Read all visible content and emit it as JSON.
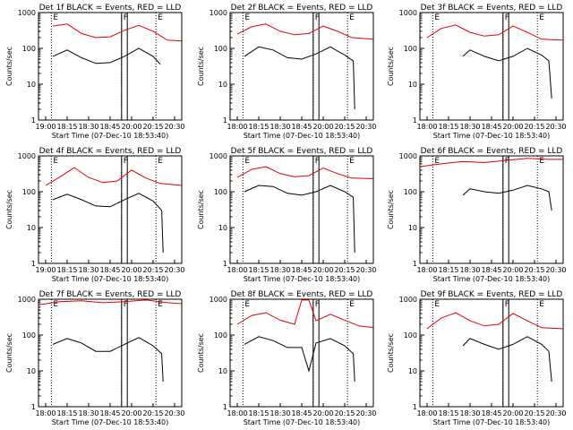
{
  "figure": {
    "x_axis_title": "Start Time (07-Dec-10 18:53:40)",
    "y_axis_title": "Counts/sec",
    "colors": {
      "events": "#000000",
      "lld": "#e00000",
      "axes": "#000000"
    }
  },
  "chart_data": [
    {
      "type": "line",
      "title": "Det 1f BLACK = Events, RED = LLD",
      "x_tick_labels": [
        "19:00",
        "18:15",
        "18:30",
        "18:45",
        "20:00",
        "20:15",
        "20:30"
      ],
      "y_tick_labels": [
        "1",
        "10",
        "100",
        "1000"
      ],
      "y_scale": "log",
      "ylim": [
        1,
        1000
      ],
      "markers": [
        "E",
        "F",
        "E"
      ],
      "series": [
        {
          "values": [
            [
              0.1,
              420
            ],
            [
              0.2,
              480
            ],
            [
              0.3,
              260
            ],
            [
              0.4,
              200
            ],
            [
              0.5,
              210
            ],
            [
              0.6,
              320
            ],
            [
              0.7,
              440
            ],
            [
              0.8,
              300
            ],
            [
              0.9,
              170
            ],
            [
              1.0,
              160
            ]
          ]
        },
        {
          "values": [
            [
              0.1,
              60
            ],
            [
              0.2,
              90
            ],
            [
              0.3,
              55
            ],
            [
              0.4,
              38
            ],
            [
              0.5,
              40
            ],
            [
              0.6,
              60
            ],
            [
              0.7,
              100
            ],
            [
              0.8,
              60
            ],
            [
              0.85,
              36
            ]
          ]
        }
      ]
    },
    {
      "type": "line",
      "title": "Det 2f BLACK = Events, RED = LLD",
      "x_tick_labels": [
        "18:00",
        "18:15",
        "18:30",
        "18:45",
        "20:00",
        "20:15",
        "20:30"
      ],
      "y_tick_labels": [
        "1",
        "10",
        "100",
        "1000"
      ],
      "y_scale": "log",
      "ylim": [
        1,
        1000
      ],
      "markers": [
        "E",
        "F",
        "E"
      ],
      "series": [
        {
          "values": [
            [
              0.05,
              250
            ],
            [
              0.15,
              400
            ],
            [
              0.25,
              480
            ],
            [
              0.35,
              300
            ],
            [
              0.45,
              240
            ],
            [
              0.55,
              260
            ],
            [
              0.65,
              420
            ],
            [
              0.75,
              300
            ],
            [
              0.85,
              200
            ],
            [
              1.0,
              180
            ]
          ]
        },
        {
          "values": [
            [
              0.1,
              60
            ],
            [
              0.2,
              110
            ],
            [
              0.3,
              90
            ],
            [
              0.4,
              55
            ],
            [
              0.5,
              50
            ],
            [
              0.6,
              70
            ],
            [
              0.7,
              110
            ],
            [
              0.8,
              65
            ],
            [
              0.86,
              45
            ],
            [
              0.87,
              2
            ]
          ]
        }
      ]
    },
    {
      "type": "line",
      "title": "Det 3f BLACK = Events, RED = LLD",
      "x_tick_labels": [
        "18:00",
        "18:15",
        "18:30",
        "18:45",
        "20:00",
        "20:15",
        "20:30"
      ],
      "y_tick_labels": [
        "1",
        "10",
        "100",
        "1000"
      ],
      "y_scale": "log",
      "ylim": [
        1,
        1000
      ],
      "markers": [
        "E",
        "F",
        "E"
      ],
      "series": [
        {
          "values": [
            [
              0.05,
              200
            ],
            [
              0.15,
              360
            ],
            [
              0.25,
              450
            ],
            [
              0.35,
              280
            ],
            [
              0.45,
              220
            ],
            [
              0.55,
              240
            ],
            [
              0.65,
              420
            ],
            [
              0.75,
              280
            ],
            [
              0.85,
              180
            ],
            [
              1.0,
              170
            ]
          ]
        },
        {
          "values": [
            [
              0.3,
              60
            ],
            [
              0.35,
              90
            ],
            [
              0.45,
              60
            ],
            [
              0.55,
              45
            ],
            [
              0.65,
              60
            ],
            [
              0.75,
              100
            ],
            [
              0.85,
              65
            ],
            [
              0.9,
              45
            ],
            [
              0.92,
              4
            ]
          ]
        }
      ]
    },
    {
      "type": "line",
      "title": "Det 4f BLACK = Events, RED = LLD",
      "x_tick_labels": [
        "19:00",
        "18:15",
        "18:30",
        "18:45",
        "20:00",
        "20:15",
        "20:30"
      ],
      "y_tick_labels": [
        "1",
        "10",
        "100",
        "1000"
      ],
      "y_scale": "log",
      "ylim": [
        1,
        1000
      ],
      "markers": [
        "E",
        "F",
        "E"
      ],
      "series": [
        {
          "values": [
            [
              0.05,
              150
            ],
            [
              0.15,
              260
            ],
            [
              0.25,
              470
            ],
            [
              0.35,
              250
            ],
            [
              0.45,
              180
            ],
            [
              0.55,
              200
            ],
            [
              0.65,
              400
            ],
            [
              0.75,
              240
            ],
            [
              0.85,
              170
            ],
            [
              1.0,
              150
            ]
          ]
        },
        {
          "values": [
            [
              0.1,
              60
            ],
            [
              0.2,
              85
            ],
            [
              0.3,
              60
            ],
            [
              0.4,
              40
            ],
            [
              0.5,
              38
            ],
            [
              0.6,
              60
            ],
            [
              0.7,
              90
            ],
            [
              0.8,
              55
            ],
            [
              0.86,
              30
            ],
            [
              0.87,
              2
            ]
          ]
        }
      ]
    },
    {
      "type": "line",
      "title": "Det 5f BLACK = Events, RED = LLD",
      "x_tick_labels": [
        "18:00",
        "18:15",
        "18:30",
        "18:45",
        "20:00",
        "20:15",
        "20:30"
      ],
      "y_tick_labels": [
        "1",
        "10",
        "100",
        "1000"
      ],
      "y_scale": "log",
      "ylim": [
        1,
        1000
      ],
      "markers": [
        "E",
        "F",
        "E"
      ],
      "series": [
        {
          "values": [
            [
              0.05,
              250
            ],
            [
              0.15,
              420
            ],
            [
              0.25,
              500
            ],
            [
              0.35,
              320
            ],
            [
              0.45,
              260
            ],
            [
              0.55,
              280
            ],
            [
              0.65,
              460
            ],
            [
              0.75,
              320
            ],
            [
              0.85,
              240
            ],
            [
              1.0,
              230
            ]
          ]
        },
        {
          "values": [
            [
              0.1,
              100
            ],
            [
              0.2,
              150
            ],
            [
              0.3,
              140
            ],
            [
              0.4,
              90
            ],
            [
              0.5,
              80
            ],
            [
              0.6,
              100
            ],
            [
              0.7,
              150
            ],
            [
              0.8,
              100
            ],
            [
              0.86,
              70
            ],
            [
              0.87,
              2
            ]
          ]
        }
      ]
    },
    {
      "type": "line",
      "title": "Det 6f BLACK = Events, RED = LLD",
      "x_tick_labels": [
        "18:00",
        "18:15",
        "18:30",
        "18:45",
        "20:00",
        "20:15",
        "20:30"
      ],
      "y_tick_labels": [
        "1",
        "10",
        "100",
        "1000"
      ],
      "y_scale": "log",
      "ylim": [
        1,
        1000
      ],
      "markers": [
        "E",
        "F",
        "E"
      ],
      "series": [
        {
          "values": [
            [
              0.0,
              500
            ],
            [
              0.15,
              600
            ],
            [
              0.3,
              700
            ],
            [
              0.45,
              650
            ],
            [
              0.6,
              750
            ],
            [
              0.75,
              850
            ],
            [
              0.9,
              800
            ],
            [
              1.0,
              800
            ]
          ]
        },
        {
          "values": [
            [
              0.3,
              80
            ],
            [
              0.35,
              120
            ],
            [
              0.45,
              100
            ],
            [
              0.55,
              90
            ],
            [
              0.65,
              110
            ],
            [
              0.75,
              150
            ],
            [
              0.85,
              120
            ],
            [
              0.9,
              100
            ],
            [
              0.92,
              30
            ]
          ]
        }
      ]
    },
    {
      "type": "line",
      "title": "Det 7f BLACK = Events, RED = LLD",
      "x_tick_labels": [
        "18:00",
        "18:15",
        "18:30",
        "18:45",
        "20:00",
        "20:15",
        "20:30"
      ],
      "y_tick_labels": [
        "1",
        "10",
        "100",
        "1000"
      ],
      "y_scale": "log",
      "ylim": [
        1,
        1000
      ],
      "markers": [
        "E",
        "F",
        "E"
      ],
      "series": [
        {
          "values": [
            [
              0.0,
              700
            ],
            [
              0.15,
              850
            ],
            [
              0.3,
              900
            ],
            [
              0.45,
              800
            ],
            [
              0.6,
              850
            ],
            [
              0.75,
              950
            ],
            [
              0.9,
              800
            ],
            [
              1.0,
              750
            ]
          ]
        },
        {
          "values": [
            [
              0.1,
              55
            ],
            [
              0.2,
              80
            ],
            [
              0.3,
              60
            ],
            [
              0.4,
              35
            ],
            [
              0.5,
              35
            ],
            [
              0.6,
              55
            ],
            [
              0.7,
              85
            ],
            [
              0.8,
              50
            ],
            [
              0.86,
              30
            ],
            [
              0.87,
              5
            ]
          ]
        }
      ]
    },
    {
      "type": "line",
      "title": "Det 8f BLACK = Events, RED = LLD",
      "x_tick_labels": [
        "18:00",
        "18:15",
        "18:30",
        "18:45",
        "20:00",
        "20:15",
        "20:30"
      ],
      "y_tick_labels": [
        "1",
        "10",
        "100",
        "1000"
      ],
      "y_scale": "log",
      "ylim": [
        1,
        1000
      ],
      "markers": [
        "E",
        "F",
        "E"
      ],
      "series": [
        {
          "values": [
            [
              0.05,
              200
            ],
            [
              0.15,
              350
            ],
            [
              0.25,
              420
            ],
            [
              0.35,
              260
            ],
            [
              0.45,
              200
            ],
            [
              0.5,
              950
            ],
            [
              0.55,
              950
            ],
            [
              0.6,
              250
            ],
            [
              0.7,
              380
            ],
            [
              0.8,
              260
            ],
            [
              0.9,
              180
            ],
            [
              1.0,
              160
            ]
          ]
        },
        {
          "values": [
            [
              0.1,
              55
            ],
            [
              0.2,
              90
            ],
            [
              0.3,
              70
            ],
            [
              0.4,
              45
            ],
            [
              0.5,
              45
            ],
            [
              0.55,
              10
            ],
            [
              0.6,
              60
            ],
            [
              0.7,
              80
            ],
            [
              0.8,
              50
            ],
            [
              0.86,
              30
            ],
            [
              0.87,
              5
            ]
          ]
        }
      ]
    },
    {
      "type": "line",
      "title": "Det 9f BLACK = Events, RED = LLD",
      "x_tick_labels": [
        "18:00",
        "18:15",
        "18:30",
        "18:45",
        "20:00",
        "20:15",
        "20:30"
      ],
      "y_tick_labels": [
        "1",
        "10",
        "100",
        "1000"
      ],
      "y_scale": "log",
      "ylim": [
        1,
        1000
      ],
      "markers": [
        "E",
        "F",
        "E"
      ],
      "series": [
        {
          "values": [
            [
              0.05,
              150
            ],
            [
              0.15,
              300
            ],
            [
              0.25,
              420
            ],
            [
              0.35,
              250
            ],
            [
              0.45,
              180
            ],
            [
              0.55,
              200
            ],
            [
              0.65,
              400
            ],
            [
              0.75,
              250
            ],
            [
              0.85,
              160
            ],
            [
              1.0,
              150
            ]
          ]
        },
        {
          "values": [
            [
              0.3,
              50
            ],
            [
              0.35,
              80
            ],
            [
              0.45,
              55
            ],
            [
              0.55,
              40
            ],
            [
              0.65,
              55
            ],
            [
              0.75,
              90
            ],
            [
              0.85,
              55
            ],
            [
              0.9,
              35
            ],
            [
              0.92,
              5
            ]
          ]
        }
      ]
    }
  ]
}
